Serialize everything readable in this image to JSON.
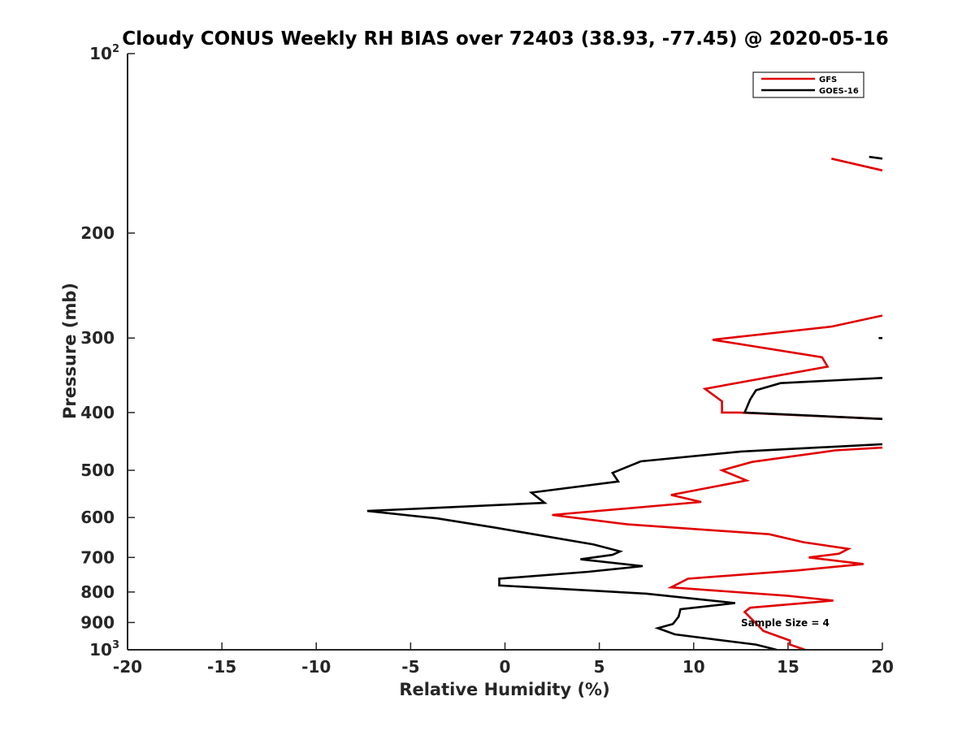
{
  "chart_data": {
    "type": "line",
    "title": "Cloudy CONUS Weekly RH BIAS over 72403 (38.93, -77.45) @ 2020-05-16",
    "xlabel": "Relative Humidity (%)",
    "ylabel": "Pressure (mb)",
    "xlim": [
      -20,
      20
    ],
    "ylim": [
      1000,
      100
    ],
    "y_scale": "log",
    "x_ticks": [
      "-20",
      "-15",
      "-10",
      "-5",
      "0",
      "5",
      "10",
      "15",
      "20"
    ],
    "y_ticks": [
      {
        "value": 100,
        "label": "10",
        "sup": "2"
      },
      {
        "value": 200,
        "label": "200",
        "sup": ""
      },
      {
        "value": 300,
        "label": "300",
        "sup": ""
      },
      {
        "value": 400,
        "label": "400",
        "sup": ""
      },
      {
        "value": 500,
        "label": "500",
        "sup": ""
      },
      {
        "value": 600,
        "label": "600",
        "sup": ""
      },
      {
        "value": 700,
        "label": "700",
        "sup": ""
      },
      {
        "value": 800,
        "label": "800",
        "sup": ""
      },
      {
        "value": 900,
        "label": "900",
        "sup": ""
      },
      {
        "value": 1000,
        "label": "10",
        "sup": "3"
      }
    ],
    "grid": false,
    "legend_position": "top-right",
    "annotation": "Sample Size = 4",
    "series": [
      {
        "name": "GFS",
        "color": "#e00000",
        "segments": [
          [
            {
              "x": 17.3,
              "p": 150
            },
            {
              "x": 20.0,
              "p": 157
            }
          ],
          [
            {
              "x": 20.0,
              "p": 275
            },
            {
              "x": 17.3,
              "p": 287
            },
            {
              "x": 11.0,
              "p": 302
            },
            {
              "x": 16.8,
              "p": 323
            },
            {
              "x": 17.1,
              "p": 335
            },
            {
              "x": 10.6,
              "p": 365
            },
            {
              "x": 11.5,
              "p": 383
            },
            {
              "x": 11.5,
              "p": 400
            },
            {
              "x": 12.4,
              "p": 400
            },
            {
              "x": 20.0,
              "p": 410
            }
          ],
          [
            {
              "x": 20.0,
              "p": 458
            },
            {
              "x": 17.5,
              "p": 463
            },
            {
              "x": 13.1,
              "p": 484
            },
            {
              "x": 11.5,
              "p": 500
            },
            {
              "x": 12.8,
              "p": 520
            },
            {
              "x": 8.8,
              "p": 550
            },
            {
              "x": 10.4,
              "p": 565
            },
            {
              "x": 2.5,
              "p": 594
            },
            {
              "x": 6.5,
              "p": 616
            },
            {
              "x": 14.0,
              "p": 640
            },
            {
              "x": 15.8,
              "p": 660
            },
            {
              "x": 18.2,
              "p": 677
            },
            {
              "x": 17.7,
              "p": 690
            },
            {
              "x": 16.1,
              "p": 700
            },
            {
              "x": 19.0,
              "p": 718
            },
            {
              "x": 15.5,
              "p": 736
            },
            {
              "x": 9.7,
              "p": 760
            },
            {
              "x": 8.8,
              "p": 786
            },
            {
              "x": 15.0,
              "p": 812
            },
            {
              "x": 17.4,
              "p": 827
            },
            {
              "x": 13.0,
              "p": 850
            },
            {
              "x": 12.7,
              "p": 864
            },
            {
              "x": 13.7,
              "p": 930
            },
            {
              "x": 15.1,
              "p": 965
            },
            {
              "x": 15.1,
              "p": 980
            },
            {
              "x": 15.9,
              "p": 1000
            }
          ]
        ]
      },
      {
        "name": "GOES-16",
        "color": "#000000",
        "segments": [
          [
            {
              "x": 19.3,
              "p": 149
            },
            {
              "x": 20.0,
              "p": 150
            }
          ],
          [
            {
              "x": 19.8,
              "p": 300
            },
            {
              "x": 20.0,
              "p": 300
            }
          ],
          [
            {
              "x": 20.0,
              "p": 350
            },
            {
              "x": 14.6,
              "p": 357
            },
            {
              "x": 13.3,
              "p": 367
            },
            {
              "x": 13.0,
              "p": 380
            },
            {
              "x": 12.7,
              "p": 400
            },
            {
              "x": 20.0,
              "p": 410
            }
          ],
          [
            {
              "x": 20.0,
              "p": 452
            },
            {
              "x": 12.5,
              "p": 465
            },
            {
              "x": 7.2,
              "p": 483
            },
            {
              "x": 5.7,
              "p": 505
            },
            {
              "x": 6.0,
              "p": 522
            },
            {
              "x": 1.4,
              "p": 545
            },
            {
              "x": 2.1,
              "p": 567
            },
            {
              "x": -7.3,
              "p": 585
            },
            {
              "x": -3.6,
              "p": 602
            },
            {
              "x": -0.5,
              "p": 624
            },
            {
              "x": 4.7,
              "p": 666
            },
            {
              "x": 6.1,
              "p": 684
            },
            {
              "x": 5.7,
              "p": 693
            },
            {
              "x": 4.0,
              "p": 705
            },
            {
              "x": 7.3,
              "p": 724
            },
            {
              "x": 4.4,
              "p": 740
            },
            {
              "x": -0.3,
              "p": 760
            },
            {
              "x": -0.3,
              "p": 780
            },
            {
              "x": 7.5,
              "p": 805
            },
            {
              "x": 12.2,
              "p": 835
            },
            {
              "x": 9.3,
              "p": 855
            },
            {
              "x": 9.2,
              "p": 880
            },
            {
              "x": 8.9,
              "p": 905
            },
            {
              "x": 8.1,
              "p": 920
            },
            {
              "x": 9.0,
              "p": 942
            },
            {
              "x": 13.3,
              "p": 980
            },
            {
              "x": 14.4,
              "p": 1000
            }
          ]
        ]
      }
    ]
  }
}
